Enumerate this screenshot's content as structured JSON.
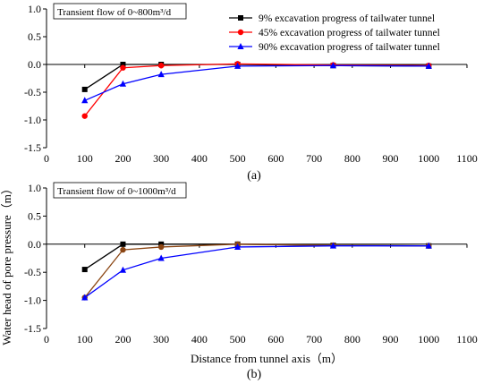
{
  "ylabel": "Water head of pore pressure（m）",
  "xlabel": "Distance from tunnel axis（m）",
  "chart_data": [
    {
      "type": "line",
      "caption": "(a)",
      "box_label": "Transient flow of 0~800m³/d",
      "xlim": [
        0,
        1100
      ],
      "ylim": [
        -1.5,
        1.0
      ],
      "xticks": [
        0,
        100,
        200,
        300,
        400,
        500,
        600,
        700,
        800,
        900,
        1000,
        1100
      ],
      "yticks": [
        1.0,
        0.5,
        0.0,
        -0.5,
        -1.0,
        -1.5
      ],
      "ytick_labels": [
        "1.0",
        "0.5",
        "0.0",
        "-0.5",
        "-1.0",
        "-1.5"
      ],
      "grid": false,
      "legend_position": "top-right",
      "x": [
        100,
        200,
        300,
        500,
        750,
        1000
      ],
      "series": [
        {
          "name": "9% excavation progress of tailwater tunnel",
          "color": "#000000",
          "marker": "square",
          "values": [
            -0.45,
            0.0,
            0.0,
            0.0,
            -0.02,
            -0.03
          ]
        },
        {
          "name": "45% excavation progress of tailwater tunnel",
          "color": "#ff0000",
          "marker": "circle",
          "values": [
            -0.93,
            -0.06,
            -0.02,
            0.01,
            -0.01,
            -0.02
          ]
        },
        {
          "name": "90% excavation progress of tailwater tunnel",
          "color": "#0000ff",
          "marker": "triangle",
          "values": [
            -0.65,
            -0.35,
            -0.18,
            -0.03,
            -0.02,
            -0.03
          ]
        }
      ]
    },
    {
      "type": "line",
      "caption": "(b)",
      "box_label": "Transient flow of 0~1000m³/d",
      "xlim": [
        0,
        1100
      ],
      "ylim": [
        -1.5,
        1.0
      ],
      "xticks": [
        0,
        100,
        200,
        300,
        400,
        500,
        600,
        700,
        800,
        900,
        1000,
        1100
      ],
      "yticks": [
        1.0,
        0.5,
        0.0,
        -0.5,
        -1.0,
        -1.5
      ],
      "ytick_labels": [
        "1.0",
        "0.5",
        "0.0",
        "-0.5",
        "-1.0",
        "-1.5"
      ],
      "grid": false,
      "legend_position": "none",
      "x": [
        100,
        200,
        300,
        500,
        750,
        1000
      ],
      "series": [
        {
          "name": "9% excavation progress of tailwater tunnel",
          "color": "#000000",
          "marker": "square",
          "values": [
            -0.45,
            0.0,
            0.0,
            0.0,
            -0.02,
            -0.03
          ]
        },
        {
          "name": "45% excavation progress of tailwater tunnel",
          "color": "#8b4513",
          "marker": "circle",
          "values": [
            -0.95,
            -0.1,
            -0.05,
            0.0,
            -0.02,
            -0.03
          ]
        },
        {
          "name": "90% excavation progress of tailwater tunnel",
          "color": "#0000ff",
          "marker": "triangle",
          "values": [
            -0.95,
            -0.46,
            -0.25,
            -0.05,
            -0.03,
            -0.03
          ]
        }
      ]
    }
  ]
}
